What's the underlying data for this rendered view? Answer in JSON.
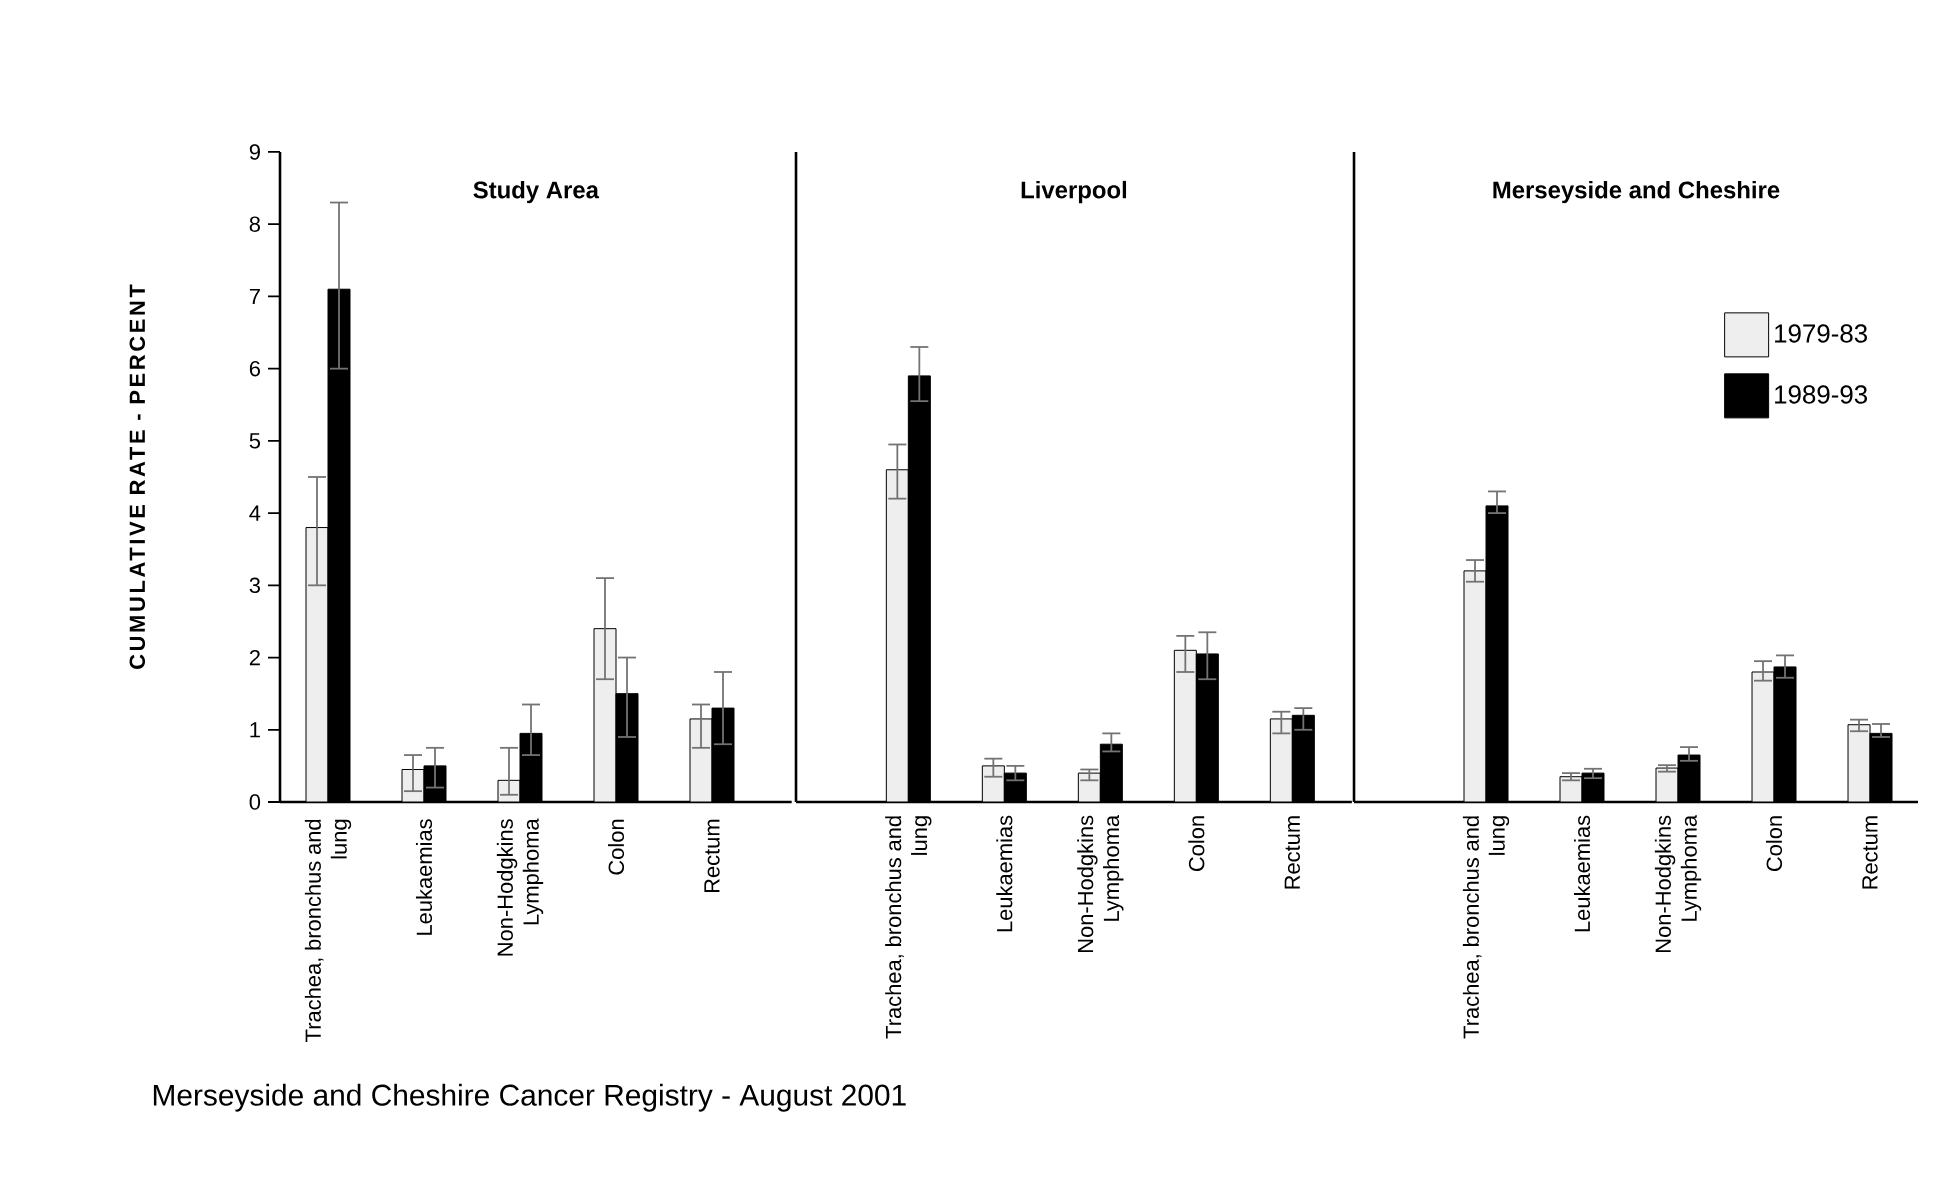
{
  "chart_data": [
    {
      "type": "bar",
      "title": "Study Area",
      "ylabel": "CUMULATIVE RATE - PERCENT",
      "ylim": [
        0,
        9
      ],
      "yticks": [
        0,
        1,
        2,
        3,
        4,
        5,
        6,
        7,
        8,
        9
      ],
      "categories": [
        "Trachea, bronchus and lung",
        "Leukaemias",
        "Non-Hodgkins Lymphoma",
        "Colon",
        "Rectum"
      ],
      "series": [
        {
          "color": "#eeeeee",
          "values": [
            3.8,
            0.45,
            0.3,
            2.4,
            1.15
          ],
          "errors": [
            [
              3.0,
              4.5
            ],
            [
              0.15,
              0.65
            ],
            [
              0.1,
              0.75
            ],
            [
              1.7,
              3.1
            ],
            [
              0.75,
              1.35
            ]
          ]
        },
        {
          "color": "#000000",
          "values": [
            7.1,
            0.5,
            0.95,
            1.5,
            1.3
          ],
          "errors": [
            [
              6.0,
              8.3
            ],
            [
              0.2,
              0.75
            ],
            [
              0.65,
              1.35
            ],
            [
              0.9,
              2.0
            ],
            [
              0.8,
              1.8
            ]
          ]
        }
      ],
      "annotations": [
        "Merseyside and Cheshire Cancer Registry - August 2001"
      ]
    },
    {
      "type": "bar",
      "title": "Liverpool",
      "ylim": [
        0,
        9
      ],
      "tick_labels": "x",
      "categories": [
        "Trachea, bronchus and lung",
        "Leukaemias",
        "Non-Hodgkins Lymphoma",
        "Colon",
        "Rectum"
      ],
      "series": [
        {
          "color": "#eeeeee",
          "values": [
            4.6,
            0.5,
            0.4,
            2.1,
            1.15
          ],
          "errors": [
            [
              4.2,
              4.95
            ],
            [
              0.35,
              0.6
            ],
            [
              0.3,
              0.45
            ],
            [
              1.8,
              2.3
            ],
            [
              0.95,
              1.25
            ]
          ]
        },
        {
          "color": "#000000",
          "values": [
            5.9,
            0.4,
            0.8,
            2.05,
            1.2
          ],
          "errors": [
            [
              5.55,
              6.3
            ],
            [
              0.3,
              0.5
            ],
            [
              0.7,
              0.95
            ],
            [
              1.7,
              2.35
            ],
            [
              1.0,
              1.3
            ]
          ]
        }
      ]
    },
    {
      "type": "bar",
      "title": "Merseyside and Cheshire",
      "ylim": [
        0,
        9
      ],
      "tick_labels": "x",
      "legend": "right",
      "categories": [
        "Trachea, bronchus and lung",
        "Leukaemias",
        "Non-Hodgkins Lymphoma",
        "Colon",
        "Rectum"
      ],
      "series": [
        {
          "name": "1979-83",
          "color": "#eeeeee",
          "values": [
            3.2,
            0.35,
            0.47,
            1.8,
            1.07
          ],
          "errors": [
            [
              3.05,
              3.35
            ],
            [
              0.3,
              0.4
            ],
            [
              0.42,
              0.51
            ],
            [
              1.68,
              1.95
            ],
            [
              0.98,
              1.14
            ]
          ]
        },
        {
          "name": "1989-93",
          "color": "#000000",
          "values": [
            4.1,
            0.4,
            0.65,
            1.87,
            0.95
          ],
          "errors": [
            [
              4.0,
              4.3
            ],
            [
              0.33,
              0.46
            ],
            [
              0.57,
              0.76
            ],
            [
              1.72,
              2.03
            ],
            [
              0.9,
              1.08
            ]
          ]
        }
      ]
    }
  ]
}
